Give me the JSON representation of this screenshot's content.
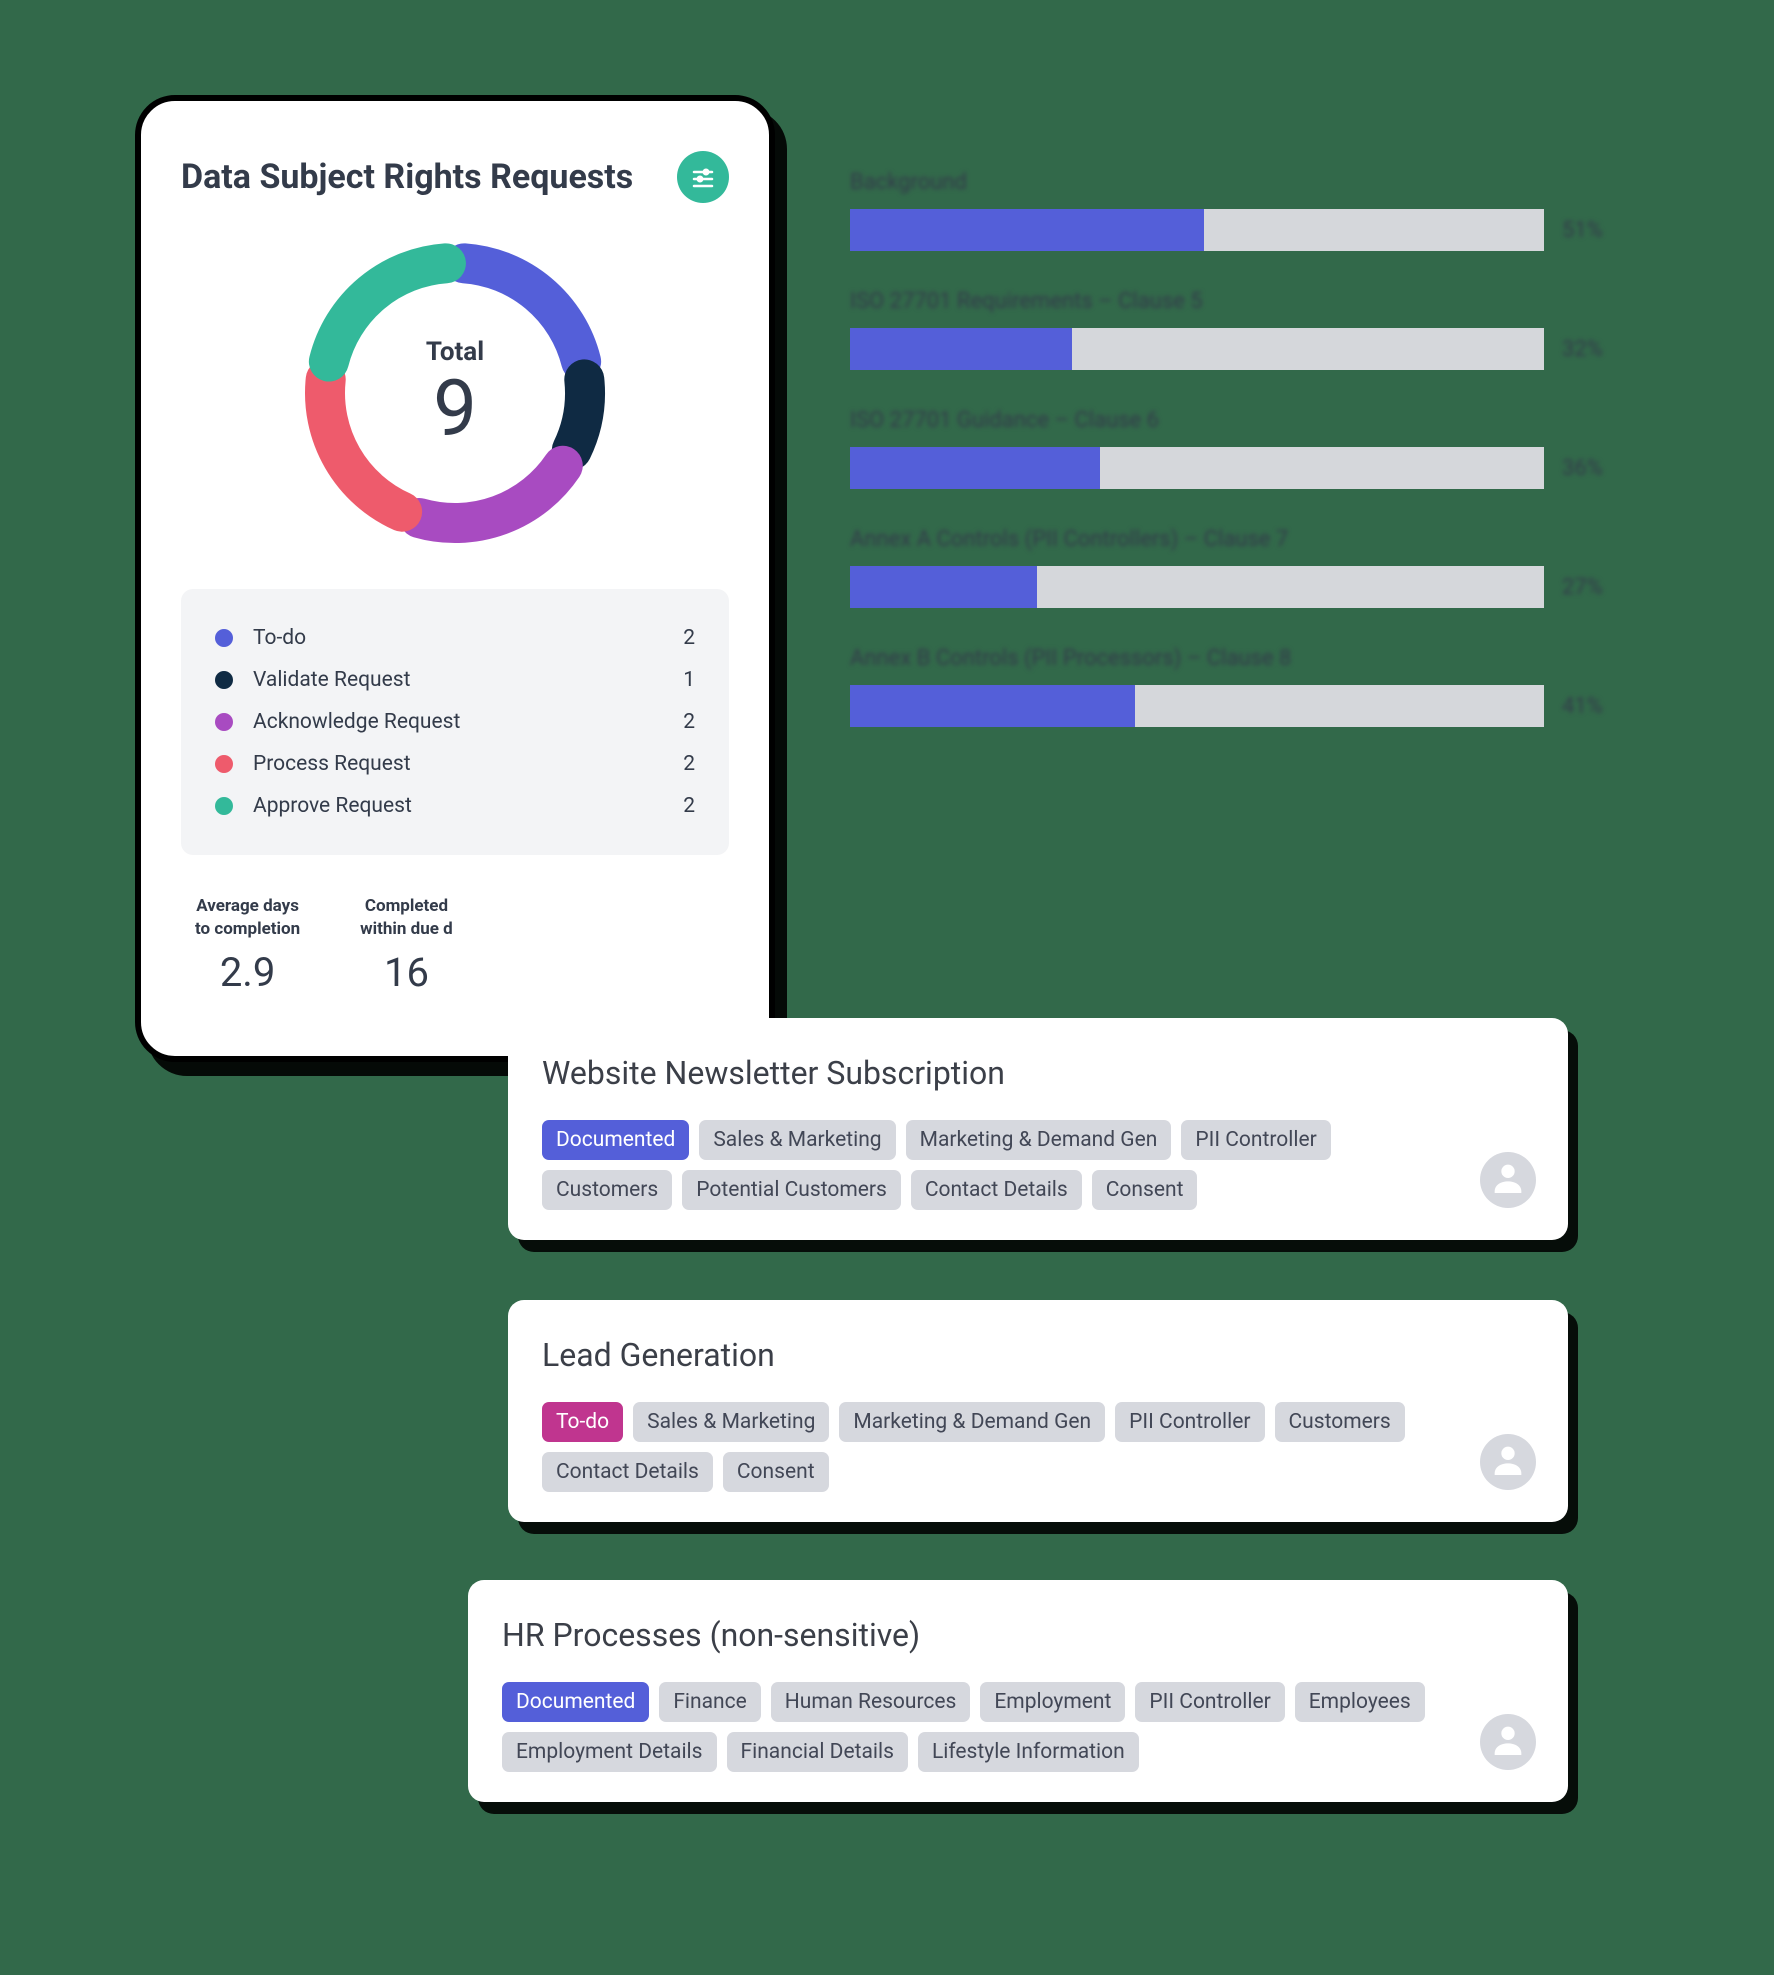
{
  "dsrr": {
    "title": "Data Subject Rights Requests",
    "donut": {
      "label": "Total",
      "value": "9",
      "radius": 130,
      "stroke": 40,
      "gap_deg": 8,
      "segments": [
        {
          "label": "To-do",
          "count": "2",
          "color": "#545fd9"
        },
        {
          "label": "Validate Request",
          "count": "1",
          "color": "#0f2a43"
        },
        {
          "label": "Acknowledge Request",
          "count": "2",
          "color": "#a84bc1"
        },
        {
          "label": "Process Request",
          "count": "2",
          "color": "#ee5b6c"
        },
        {
          "label": "Approve Request",
          "count": "2",
          "color": "#33b99a"
        }
      ]
    },
    "stats": [
      {
        "label": "Average days\nto completion",
        "value": "2.9"
      },
      {
        "label": "Completed\nwithin due d",
        "value": "16"
      }
    ]
  },
  "progress": {
    "track_color": "#d5d7db",
    "fill_color": "#545fd9",
    "items": [
      {
        "title": "Background",
        "pct": 51
      },
      {
        "title": "ISO 27701 Requirements – Clause 5",
        "pct": 32
      },
      {
        "title": "ISO 27701 Guidance – Clause 6",
        "pct": 36
      },
      {
        "title": "Annex A Controls (PII Controllers) – Clause 7",
        "pct": 27
      },
      {
        "title": "Annex B Controls (PII Processors) – Clause 8",
        "pct": 41
      }
    ]
  },
  "activities": [
    {
      "title": "Website Newsletter Subscription",
      "status": {
        "type": "doc",
        "text": "Documented"
      },
      "tags": [
        "Sales & Marketing",
        "Marketing & Demand Gen",
        "PII Controller",
        "Customers",
        "Potential Customers",
        "Contact Details",
        "Consent"
      ]
    },
    {
      "title": "Lead Generation",
      "status": {
        "type": "todo",
        "text": "To-do"
      },
      "tags": [
        "Sales & Marketing",
        "Marketing & Demand Gen",
        "PII Controller",
        "Customers",
        "Contact Details",
        "Consent"
      ]
    },
    {
      "title": "HR Processes (non-sensitive)",
      "status": {
        "type": "doc",
        "text": "Documented"
      },
      "tags": [
        "Finance",
        "Human Resources",
        "Employment",
        "PII Controller",
        "Employees",
        "Employment Details",
        "Financial Details",
        "Lifestyle Information"
      ]
    }
  ],
  "colors": {
    "background": "#32694a",
    "accent_teal": "#33b99a"
  }
}
